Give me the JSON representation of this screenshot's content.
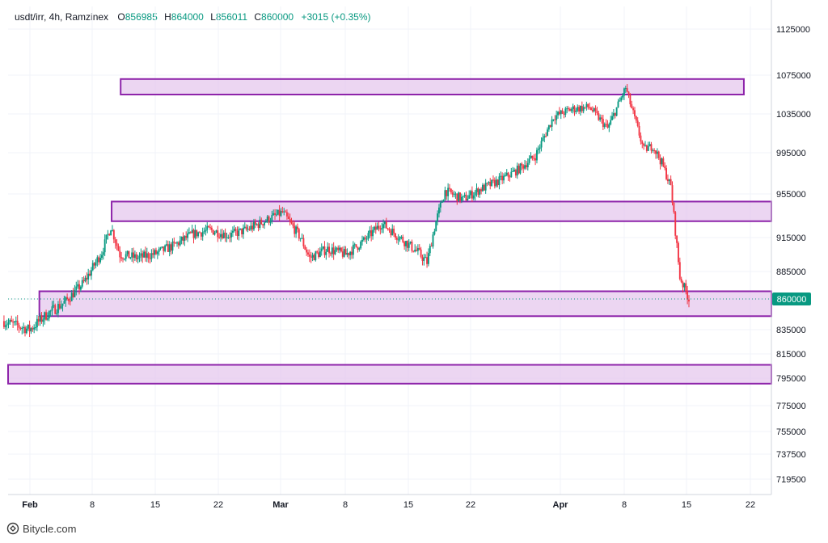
{
  "header": {
    "symbol": "usdt/irr, 4h, Ramzinex",
    "o_label": "O",
    "o_value": "856985",
    "h_label": "H",
    "h_value": "864000",
    "l_label": "L",
    "l_value": "856011",
    "c_label": "C",
    "c_value": "860000",
    "change": "+3015 (+0.35%)"
  },
  "watermark": {
    "text": "Bitycle.com",
    "icon": "bitycle-logo-icon"
  },
  "colors": {
    "up": "#089981",
    "down": "#f23645",
    "zone_fill": "#e6c8ee",
    "zone_border": "#8e24aa",
    "grid": "#f0f3fa",
    "price_badge": "#089981"
  },
  "chart_data": {
    "type": "candlestick",
    "title": "",
    "xlabel": "",
    "ylabel": "",
    "x_ticks": [
      "Feb",
      "8",
      "15",
      "22",
      "Mar",
      "8",
      "15",
      "22",
      "Apr",
      "8",
      "15",
      "22"
    ],
    "y_ticks": [
      "1125000",
      "1075000",
      "1035000",
      "995000",
      "955000",
      "915000",
      "885000",
      "860000",
      "835000",
      "815000",
      "795000",
      "775000",
      "755000",
      "737500",
      "719500"
    ],
    "last_price": "860000",
    "grid": true,
    "close_path": [
      [
        "Jan 29",
        842000
      ],
      [
        "Feb 1",
        835000
      ],
      [
        "Feb 3",
        848000
      ],
      [
        "Feb 5",
        858000
      ],
      [
        "Feb 7",
        875000
      ],
      [
        "Feb 9",
        902000
      ],
      [
        "Feb 10",
        925000
      ],
      [
        "Feb 11",
        900000
      ],
      [
        "Feb 13",
        897000
      ],
      [
        "Feb 15",
        901000
      ],
      [
        "Feb 17",
        908000
      ],
      [
        "Feb 19",
        918000
      ],
      [
        "Feb 21",
        922000
      ],
      [
        "Feb 23",
        917000
      ],
      [
        "Feb 25",
        922000
      ],
      [
        "Feb 27",
        930000
      ],
      [
        "Feb 29",
        938000
      ],
      [
        "Mar 2",
        915000
      ],
      [
        "Mar 3",
        897000
      ],
      [
        "Mar 5",
        905000
      ],
      [
        "Mar 7",
        900000
      ],
      [
        "Mar 9",
        912000
      ],
      [
        "Mar 11",
        928000
      ],
      [
        "Mar 13",
        915000
      ],
      [
        "Mar 15",
        902000
      ],
      [
        "Mar 16",
        893000
      ],
      [
        "Mar 17",
        930000
      ],
      [
        "Mar 18",
        958000
      ],
      [
        "Mar 20",
        950000
      ],
      [
        "Mar 22",
        960000
      ],
      [
        "Mar 24",
        968000
      ],
      [
        "Mar 26",
        978000
      ],
      [
        "Mar 28",
        992000
      ],
      [
        "Mar 30",
        1032000
      ],
      [
        "Apr 1",
        1040000
      ],
      [
        "Apr 3",
        1042000
      ],
      [
        "Apr 5",
        1020000
      ],
      [
        "Apr 7",
        1062000
      ],
      [
        "Apr 8",
        1030000
      ],
      [
        "Apr 9",
        998000
      ],
      [
        "Apr 10",
        1002000
      ],
      [
        "Apr 11",
        985000
      ],
      [
        "Apr 12",
        962000
      ],
      [
        "Apr 13",
        880000
      ],
      [
        "Apr 14",
        860000
      ]
    ],
    "zones": [
      {
        "from": "Feb 11",
        "to": "Apr 20",
        "low": 1055000,
        "high": 1071000
      },
      {
        "from": "Feb 10",
        "to": "Apr 24",
        "low": 930000,
        "high": 948000
      },
      {
        "from": "Feb 2",
        "to": "Apr 24",
        "low": 846000,
        "high": 867000
      },
      {
        "from": "Jan 29",
        "to": "Apr 24",
        "low": 791000,
        "high": 806000
      }
    ]
  }
}
